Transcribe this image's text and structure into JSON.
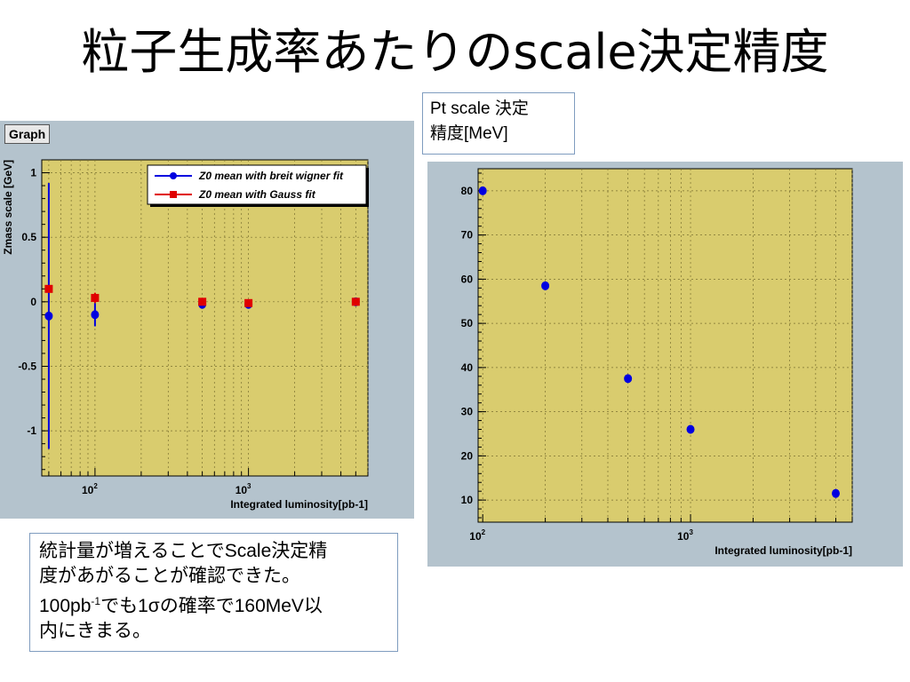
{
  "slide": {
    "title": "粒子生成率あたりのscale決定精度"
  },
  "pt_box": {
    "line1": "Pt scale 決定",
    "line2": "精度[MeV]"
  },
  "note_box": {
    "line1": "統計量が増えることでScale決定精",
    "line2": "度があがることが確認できた。",
    "line3_a": "100pb",
    "line3_sup": "-1",
    "line3_b": "でも1σの確率で160MeV以",
    "line4": "内にきまる。"
  },
  "colors": {
    "panel_bg": "#b4c3cd",
    "plot_bg": "#d9cc6e",
    "blue": "#0000e0",
    "red": "#e00000"
  },
  "chart_data": [
    {
      "type": "scatter",
      "tag": "Graph",
      "xscale": "log",
      "xlim": [
        45,
        6000
      ],
      "ylim": [
        -1.35,
        1.1
      ],
      "xlabel": "Integrated luminosity[pb-1]",
      "ylabel": "Zmass scale [GeV]",
      "y_ticks": [
        {
          "value": 1,
          "label": "1"
        },
        {
          "value": 0.5,
          "label": "0.5"
        },
        {
          "value": 0,
          "label": "0"
        },
        {
          "value": -0.5,
          "label": "-0.5"
        },
        {
          "value": -1,
          "label": "-1"
        }
      ],
      "x_ticks": [
        {
          "value": 100,
          "label_base": "10",
          "label_exp": "2"
        },
        {
          "value": 1000,
          "label_base": "10",
          "label_exp": "3"
        }
      ],
      "grid": true,
      "legend_position": "top-right",
      "series": [
        {
          "name": "Z0 mean with breit wigner fit",
          "marker": "circle",
          "color": "#0000e0",
          "points": [
            {
              "x": 50,
              "y": -0.11,
              "err": 1.03
            },
            {
              "x": 100,
              "y": -0.1,
              "err": 0.09
            },
            {
              "x": 500,
              "y": -0.02,
              "err": 0.03
            },
            {
              "x": 1000,
              "y": -0.02,
              "err": 0.02
            },
            {
              "x": 5000,
              "y": 0.0,
              "err": 0.01
            }
          ]
        },
        {
          "name": "Z0 mean with Gauss fit",
          "marker": "square",
          "color": "#e00000",
          "points": [
            {
              "x": 50,
              "y": 0.1,
              "err": 0.01
            },
            {
              "x": 100,
              "y": 0.03,
              "err": 0.04
            },
            {
              "x": 500,
              "y": 0.0,
              "err": 0.02
            },
            {
              "x": 1000,
              "y": -0.01,
              "err": 0.01
            },
            {
              "x": 5000,
              "y": 0.0,
              "err": 0.01
            }
          ]
        }
      ]
    },
    {
      "type": "scatter",
      "xscale": "log",
      "xlim": [
        95,
        6000
      ],
      "ylim": [
        5,
        85
      ],
      "xlabel": "Integrated luminosity[pb-1]",
      "ylabel": "",
      "y_ticks": [
        {
          "value": 80,
          "label": "80"
        },
        {
          "value": 70,
          "label": "70"
        },
        {
          "value": 60,
          "label": "60"
        },
        {
          "value": 50,
          "label": "50"
        },
        {
          "value": 40,
          "label": "40"
        },
        {
          "value": 30,
          "label": "30"
        },
        {
          "value": 20,
          "label": "20"
        },
        {
          "value": 10,
          "label": "10"
        }
      ],
      "x_ticks": [
        {
          "value": 100,
          "label_base": "10",
          "label_exp": "2"
        },
        {
          "value": 1000,
          "label_base": "10",
          "label_exp": "3"
        }
      ],
      "grid": true,
      "series": [
        {
          "marker": "circle",
          "color": "#0000e0",
          "points": [
            {
              "x": 100,
              "y": 80
            },
            {
              "x": 200,
              "y": 58.5
            },
            {
              "x": 500,
              "y": 37.5
            },
            {
              "x": 1000,
              "y": 26
            },
            {
              "x": 5000,
              "y": 11.5
            }
          ]
        }
      ]
    }
  ]
}
